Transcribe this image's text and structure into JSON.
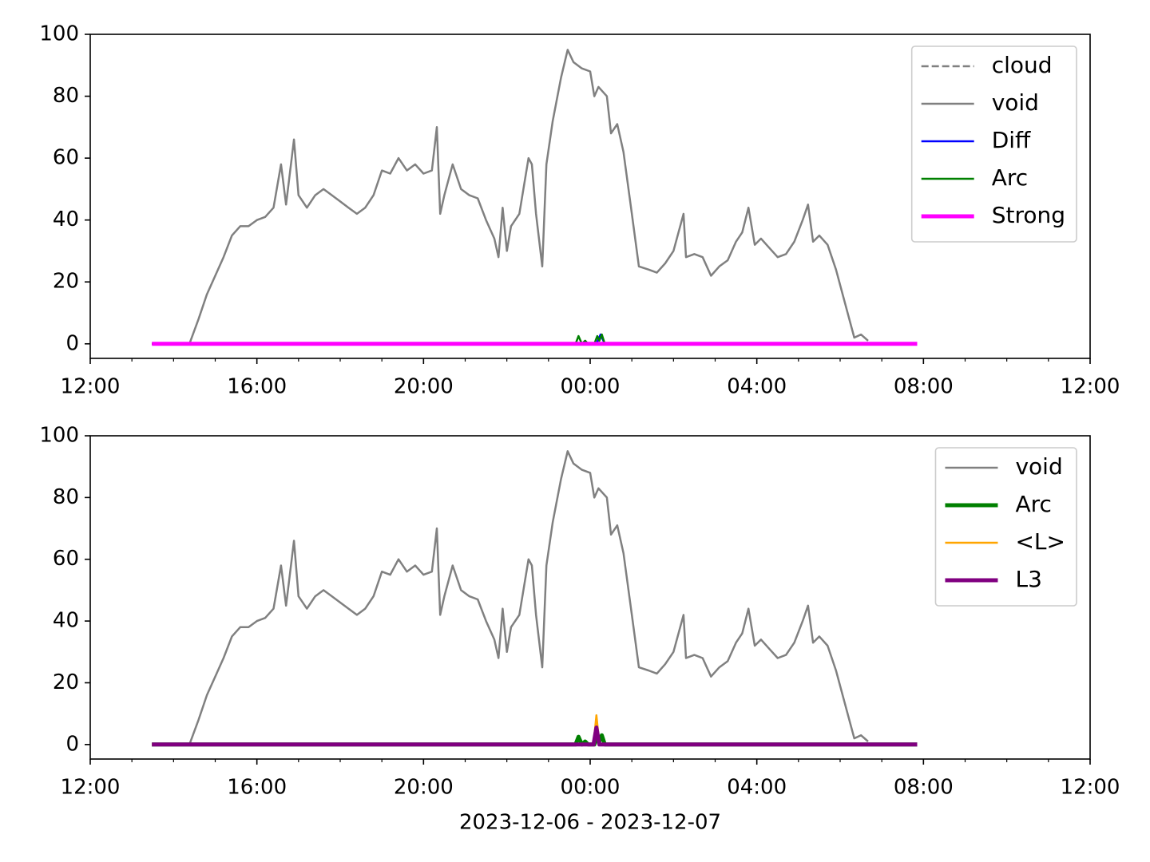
{
  "chart_data": [
    {
      "type": "line",
      "xlim": [
        12,
        36
      ],
      "ylim": [
        -4.7,
        100
      ],
      "xticks": [
        {
          "value": 12,
          "label": "12:00"
        },
        {
          "value": 16,
          "label": "16:00"
        },
        {
          "value": 20,
          "label": "20:00"
        },
        {
          "value": 24,
          "label": "00:00"
        },
        {
          "value": 28,
          "label": "04:00"
        },
        {
          "value": 32,
          "label": "08:00"
        },
        {
          "value": 36,
          "label": "12:00"
        }
      ],
      "xminorticks": [
        13,
        14,
        15,
        17,
        18,
        19,
        21,
        22,
        23,
        25,
        26,
        27,
        29,
        30,
        31,
        33,
        34,
        35
      ],
      "yticks": [
        0,
        20,
        40,
        60,
        80,
        100
      ],
      "legend": "upper right",
      "series": [
        {
          "name": "cloud",
          "color": "#808080",
          "linewidth": 2.5,
          "dash": true,
          "x": [
            13.48,
            31.85
          ],
          "values": [
            0,
            0
          ]
        },
        {
          "name": "void",
          "color": "#808080",
          "linewidth": 2.5,
          "x": [
            13.48,
            14.38,
            14.6,
            14.8,
            15.0,
            15.2,
            15.4,
            15.6,
            15.8,
            16.0,
            16.2,
            16.4,
            16.58,
            16.7,
            16.89,
            17.0,
            17.2,
            17.4,
            17.6,
            17.8,
            18.0,
            18.2,
            18.4,
            18.6,
            18.8,
            19.0,
            19.2,
            19.4,
            19.6,
            19.8,
            20.0,
            20.2,
            20.32,
            20.4,
            20.5,
            20.7,
            20.9,
            21.1,
            21.3,
            21.5,
            21.7,
            21.8,
            21.9,
            22.0,
            22.1,
            22.3,
            22.52,
            22.6,
            22.7,
            22.85,
            22.95,
            23.1,
            23.3,
            23.46,
            23.6,
            23.8,
            24.0,
            24.1,
            24.2,
            24.4,
            24.5,
            24.65,
            24.8,
            25.0,
            25.17,
            25.4,
            25.6,
            25.8,
            26.0,
            26.24,
            26.3,
            26.5,
            26.7,
            26.9,
            27.1,
            27.3,
            27.5,
            27.65,
            27.8,
            27.95,
            28.1,
            28.3,
            28.5,
            28.7,
            28.9,
            29.1,
            29.23,
            29.35,
            29.5,
            29.7,
            29.9,
            30.1,
            30.34,
            30.5,
            30.67
          ],
          "values": [
            0,
            0,
            8,
            16,
            22,
            28,
            35,
            38,
            38,
            40,
            41,
            44,
            58,
            45,
            66,
            48,
            44,
            48,
            50,
            48,
            46,
            44,
            42,
            44,
            48,
            56,
            55,
            60,
            56,
            58,
            55,
            56,
            70,
            42,
            48,
            58,
            50,
            48,
            47,
            40,
            34,
            28,
            44,
            30,
            38,
            42,
            60,
            58,
            42,
            25,
            58,
            72,
            86,
            95,
            91,
            89,
            88,
            80,
            83,
            80,
            68,
            71,
            62,
            42,
            25,
            24,
            23,
            26,
            30,
            42,
            28,
            29,
            28,
            22,
            25,
            27,
            33,
            36,
            44,
            32,
            34,
            31,
            28,
            29,
            33,
            40,
            45,
            33,
            35,
            32,
            24,
            14,
            2,
            3,
            1
          ]
        },
        {
          "name": "Diff",
          "color": "#0000ff",
          "linewidth": 2.5,
          "x": [
            13.48,
            24.15,
            24.25,
            24.35,
            31.85
          ],
          "values": [
            0,
            0,
            3,
            0,
            0
          ]
        },
        {
          "name": "Arc",
          "color": "#008000",
          "linewidth": 2.5,
          "x": [
            13.48,
            23.65,
            23.72,
            23.8,
            23.88,
            23.95,
            24.1,
            24.17,
            24.22,
            24.28,
            24.35,
            31.85
          ],
          "values": [
            0,
            0,
            2.5,
            0,
            1,
            0,
            0,
            2.5,
            1,
            3,
            0,
            0
          ]
        },
        {
          "name": "Strong",
          "color": "#ff00ff",
          "linewidth": 5,
          "x": [
            13.48,
            31.85
          ],
          "values": [
            0,
            0
          ]
        }
      ]
    },
    {
      "type": "line",
      "xlim": [
        12,
        36
      ],
      "ylim": [
        -4.7,
        100
      ],
      "xlabel": "2023-12-06 - 2023-12-07",
      "xticks": [
        {
          "value": 12,
          "label": "12:00"
        },
        {
          "value": 16,
          "label": "16:00"
        },
        {
          "value": 20,
          "label": "20:00"
        },
        {
          "value": 24,
          "label": "00:00"
        },
        {
          "value": 28,
          "label": "04:00"
        },
        {
          "value": 32,
          "label": "08:00"
        },
        {
          "value": 36,
          "label": "12:00"
        }
      ],
      "xminorticks": [
        13,
        14,
        15,
        17,
        18,
        19,
        21,
        22,
        23,
        25,
        26,
        27,
        29,
        30,
        31,
        33,
        34,
        35
      ],
      "yticks": [
        0,
        20,
        40,
        60,
        80,
        100
      ],
      "legend": "upper right",
      "series": [
        {
          "name": "void",
          "color": "#808080",
          "linewidth": 2.5,
          "x": [
            13.48,
            14.38,
            14.6,
            14.8,
            15.0,
            15.2,
            15.4,
            15.6,
            15.8,
            16.0,
            16.2,
            16.4,
            16.58,
            16.7,
            16.89,
            17.0,
            17.2,
            17.4,
            17.6,
            17.8,
            18.0,
            18.2,
            18.4,
            18.6,
            18.8,
            19.0,
            19.2,
            19.4,
            19.6,
            19.8,
            20.0,
            20.2,
            20.32,
            20.4,
            20.5,
            20.7,
            20.9,
            21.1,
            21.3,
            21.5,
            21.7,
            21.8,
            21.9,
            22.0,
            22.1,
            22.3,
            22.52,
            22.6,
            22.7,
            22.85,
            22.95,
            23.1,
            23.3,
            23.46,
            23.6,
            23.8,
            24.0,
            24.1,
            24.2,
            24.4,
            24.5,
            24.65,
            24.8,
            25.0,
            25.17,
            25.4,
            25.6,
            25.8,
            26.0,
            26.24,
            26.3,
            26.5,
            26.7,
            26.9,
            27.1,
            27.3,
            27.5,
            27.65,
            27.8,
            27.95,
            28.1,
            28.3,
            28.5,
            28.7,
            28.9,
            29.1,
            29.23,
            29.35,
            29.5,
            29.7,
            29.9,
            30.1,
            30.34,
            30.5,
            30.67
          ],
          "values": [
            0,
            0,
            8,
            16,
            22,
            28,
            35,
            38,
            38,
            40,
            41,
            44,
            58,
            45,
            66,
            48,
            44,
            48,
            50,
            48,
            46,
            44,
            42,
            44,
            48,
            56,
            55,
            60,
            56,
            58,
            55,
            56,
            70,
            42,
            48,
            58,
            50,
            48,
            47,
            40,
            34,
            28,
            44,
            30,
            38,
            42,
            60,
            58,
            42,
            25,
            58,
            72,
            86,
            95,
            91,
            89,
            88,
            80,
            83,
            80,
            68,
            71,
            62,
            42,
            25,
            24,
            23,
            26,
            30,
            42,
            28,
            29,
            28,
            22,
            25,
            27,
            33,
            36,
            44,
            32,
            34,
            31,
            28,
            29,
            33,
            40,
            45,
            33,
            35,
            32,
            24,
            14,
            2,
            3,
            1
          ]
        },
        {
          "name": "Arc",
          "color": "#008000",
          "linewidth": 5,
          "x": [
            13.48,
            23.65,
            23.72,
            23.8,
            23.88,
            23.95,
            24.1,
            24.17,
            24.22,
            24.28,
            24.35,
            31.85
          ],
          "values": [
            0,
            0,
            2.5,
            0,
            1,
            0,
            0,
            2.5,
            1,
            3,
            0,
            0
          ]
        },
        {
          "name": "<L>",
          "color": "#ffa500",
          "linewidth": 2.5,
          "x": [
            13.48,
            24.08,
            24.15,
            24.22,
            31.85
          ],
          "values": [
            0,
            0,
            9.5,
            0,
            0
          ]
        },
        {
          "name": "L3",
          "color": "#800080",
          "linewidth": 5,
          "x": [
            13.48,
            24.08,
            24.15,
            24.22,
            31.85
          ],
          "values": [
            0,
            0,
            5.5,
            0,
            0
          ]
        }
      ]
    }
  ]
}
